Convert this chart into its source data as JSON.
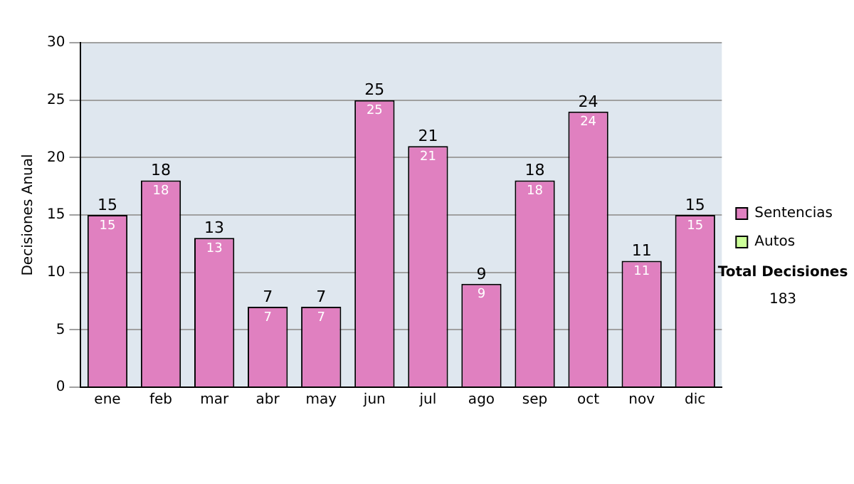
{
  "chart_data": {
    "type": "bar",
    "ylabel": "Decisiones Anual",
    "categories": [
      "ene",
      "feb",
      "mar",
      "abr",
      "may",
      "jun",
      "jul",
      "ago",
      "sep",
      "oct",
      "nov",
      "dic"
    ],
    "series": [
      {
        "name": "Sentencias",
        "color": "#e080c0",
        "values": [
          15,
          18,
          13,
          7,
          7,
          25,
          21,
          9,
          18,
          24,
          11,
          15
        ],
        "value_labels": [
          "15",
          "18",
          "13",
          "7",
          "7",
          "25",
          "21",
          "9",
          "18",
          "24",
          "11",
          "15"
        ]
      },
      {
        "name": "Autos",
        "color": "#ccff99",
        "values": [
          0,
          0,
          0,
          0,
          0,
          0,
          0,
          0,
          0,
          0,
          0,
          0
        ]
      }
    ],
    "stacked": true,
    "totals": [
      "15",
      "18",
      "13",
      "7",
      "7",
      "25",
      "21",
      "9",
      "18",
      "24",
      "11",
      "15"
    ],
    "ylim": [
      0,
      30
    ],
    "yticks": [
      0,
      5,
      10,
      15,
      20,
      25,
      30
    ],
    "grid": "y",
    "legend": "right",
    "annotations": [
      "Total Decisiones",
      "183"
    ]
  }
}
